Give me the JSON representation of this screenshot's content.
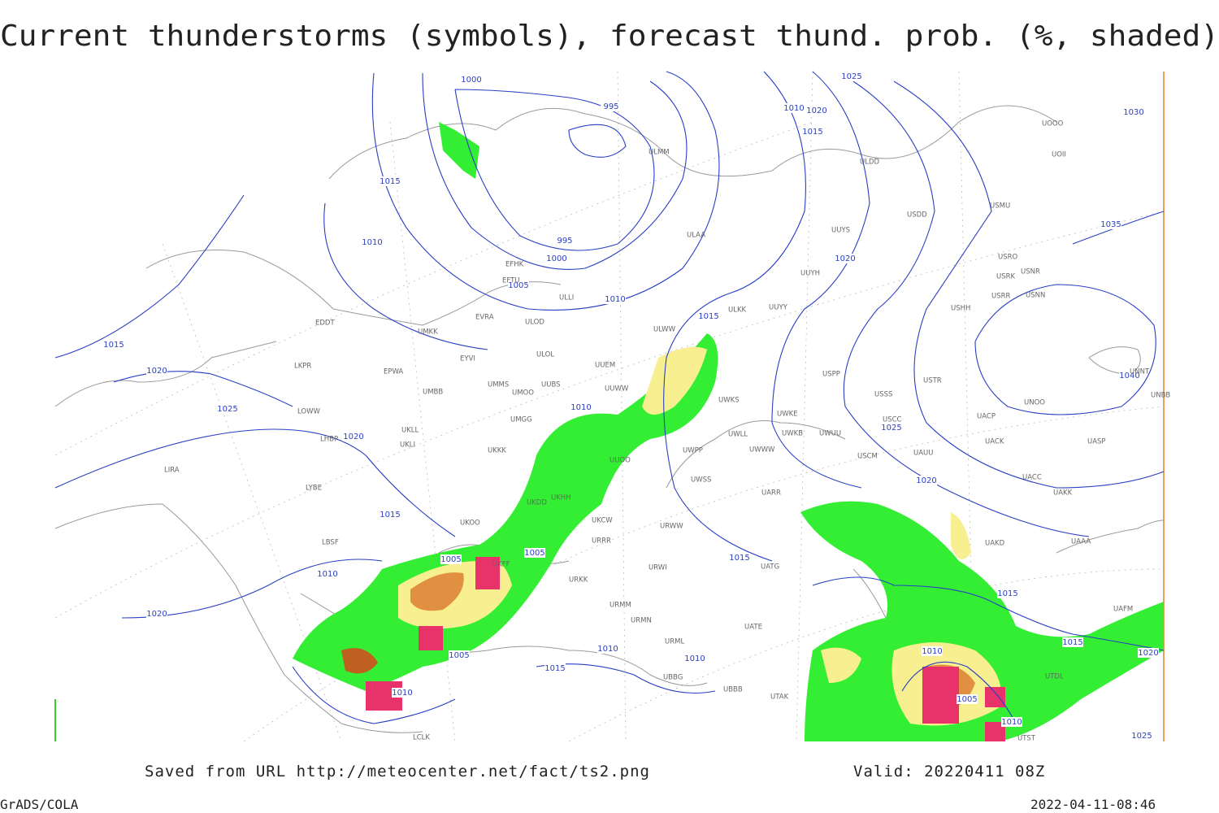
{
  "title": "Current thunderstorms (symbols), forecast thund. prob. (%, shaded)",
  "footer": {
    "saved_from": "Saved from URL  http://meteocenter.net/fact/ts2.png",
    "valid": "Valid: 20220411 08Z",
    "software": "GrADS/COLA",
    "timestamp": "2022-04-11-08:46"
  },
  "isobar_labels": [
    1000,
    995,
    1010,
    1020,
    1015,
    1025,
    1030,
    1015,
    1010,
    995,
    1000,
    1005,
    1010,
    1015,
    1020,
    1025,
    1020,
    1015,
    1010,
    1015,
    1020,
    1035,
    1040,
    1025,
    1020,
    1015,
    1005,
    1005,
    1010,
    1020,
    1005,
    1015,
    1010,
    1010,
    1010,
    1015,
    1010,
    1005,
    1010,
    1015,
    1020,
    1025
  ],
  "stations": [
    "EFHK",
    "EFTU",
    "EDDT",
    "EPWA",
    "EYVI",
    "UMKK",
    "ULLI",
    "ULOL",
    "ULOD",
    "EVRA",
    "UUEM",
    "UMMS",
    "UMOO",
    "UUBS",
    "UUWW",
    "UMBB",
    "LKPR",
    "LOWW",
    "LHBP",
    "UKLL",
    "UKLI",
    "LIRA",
    "LYBE",
    "UMGG",
    "UKKK",
    "LBSF",
    "UKHH",
    "UKFF",
    "UKDD",
    "UKOO",
    "URRR",
    "UKCW",
    "UUOO",
    "UWPP",
    "UWWW",
    "UWSS",
    "URWI",
    "URMM",
    "URMN",
    "URML",
    "UBBG",
    "URKK",
    "UTAK",
    "UBBB",
    "UATE",
    "UATG",
    "ULMM",
    "ULDD",
    "USDD",
    "USMU",
    "UOOO",
    "UOII",
    "ULAA",
    "UUYS",
    "UUYH",
    "UUYY",
    "ULKK",
    "ULWW",
    "UWKS",
    "UWKE",
    "UWLL",
    "UWKB",
    "UWUU",
    "USRR",
    "USSS",
    "USTR",
    "USCC",
    "USCM",
    "UAUU",
    "UACC",
    "UAKK",
    "UAAA",
    "UAKD",
    "UASP",
    "UNOO",
    "UNBB",
    "UNNT",
    "USNN",
    "USNR",
    "USRO",
    "USRK",
    "USHH",
    "USPP",
    "UACP",
    "UACK",
    "UTDL",
    "UTST",
    "UAFM",
    "LCLK",
    "URWW",
    "UARR"
  ]
}
